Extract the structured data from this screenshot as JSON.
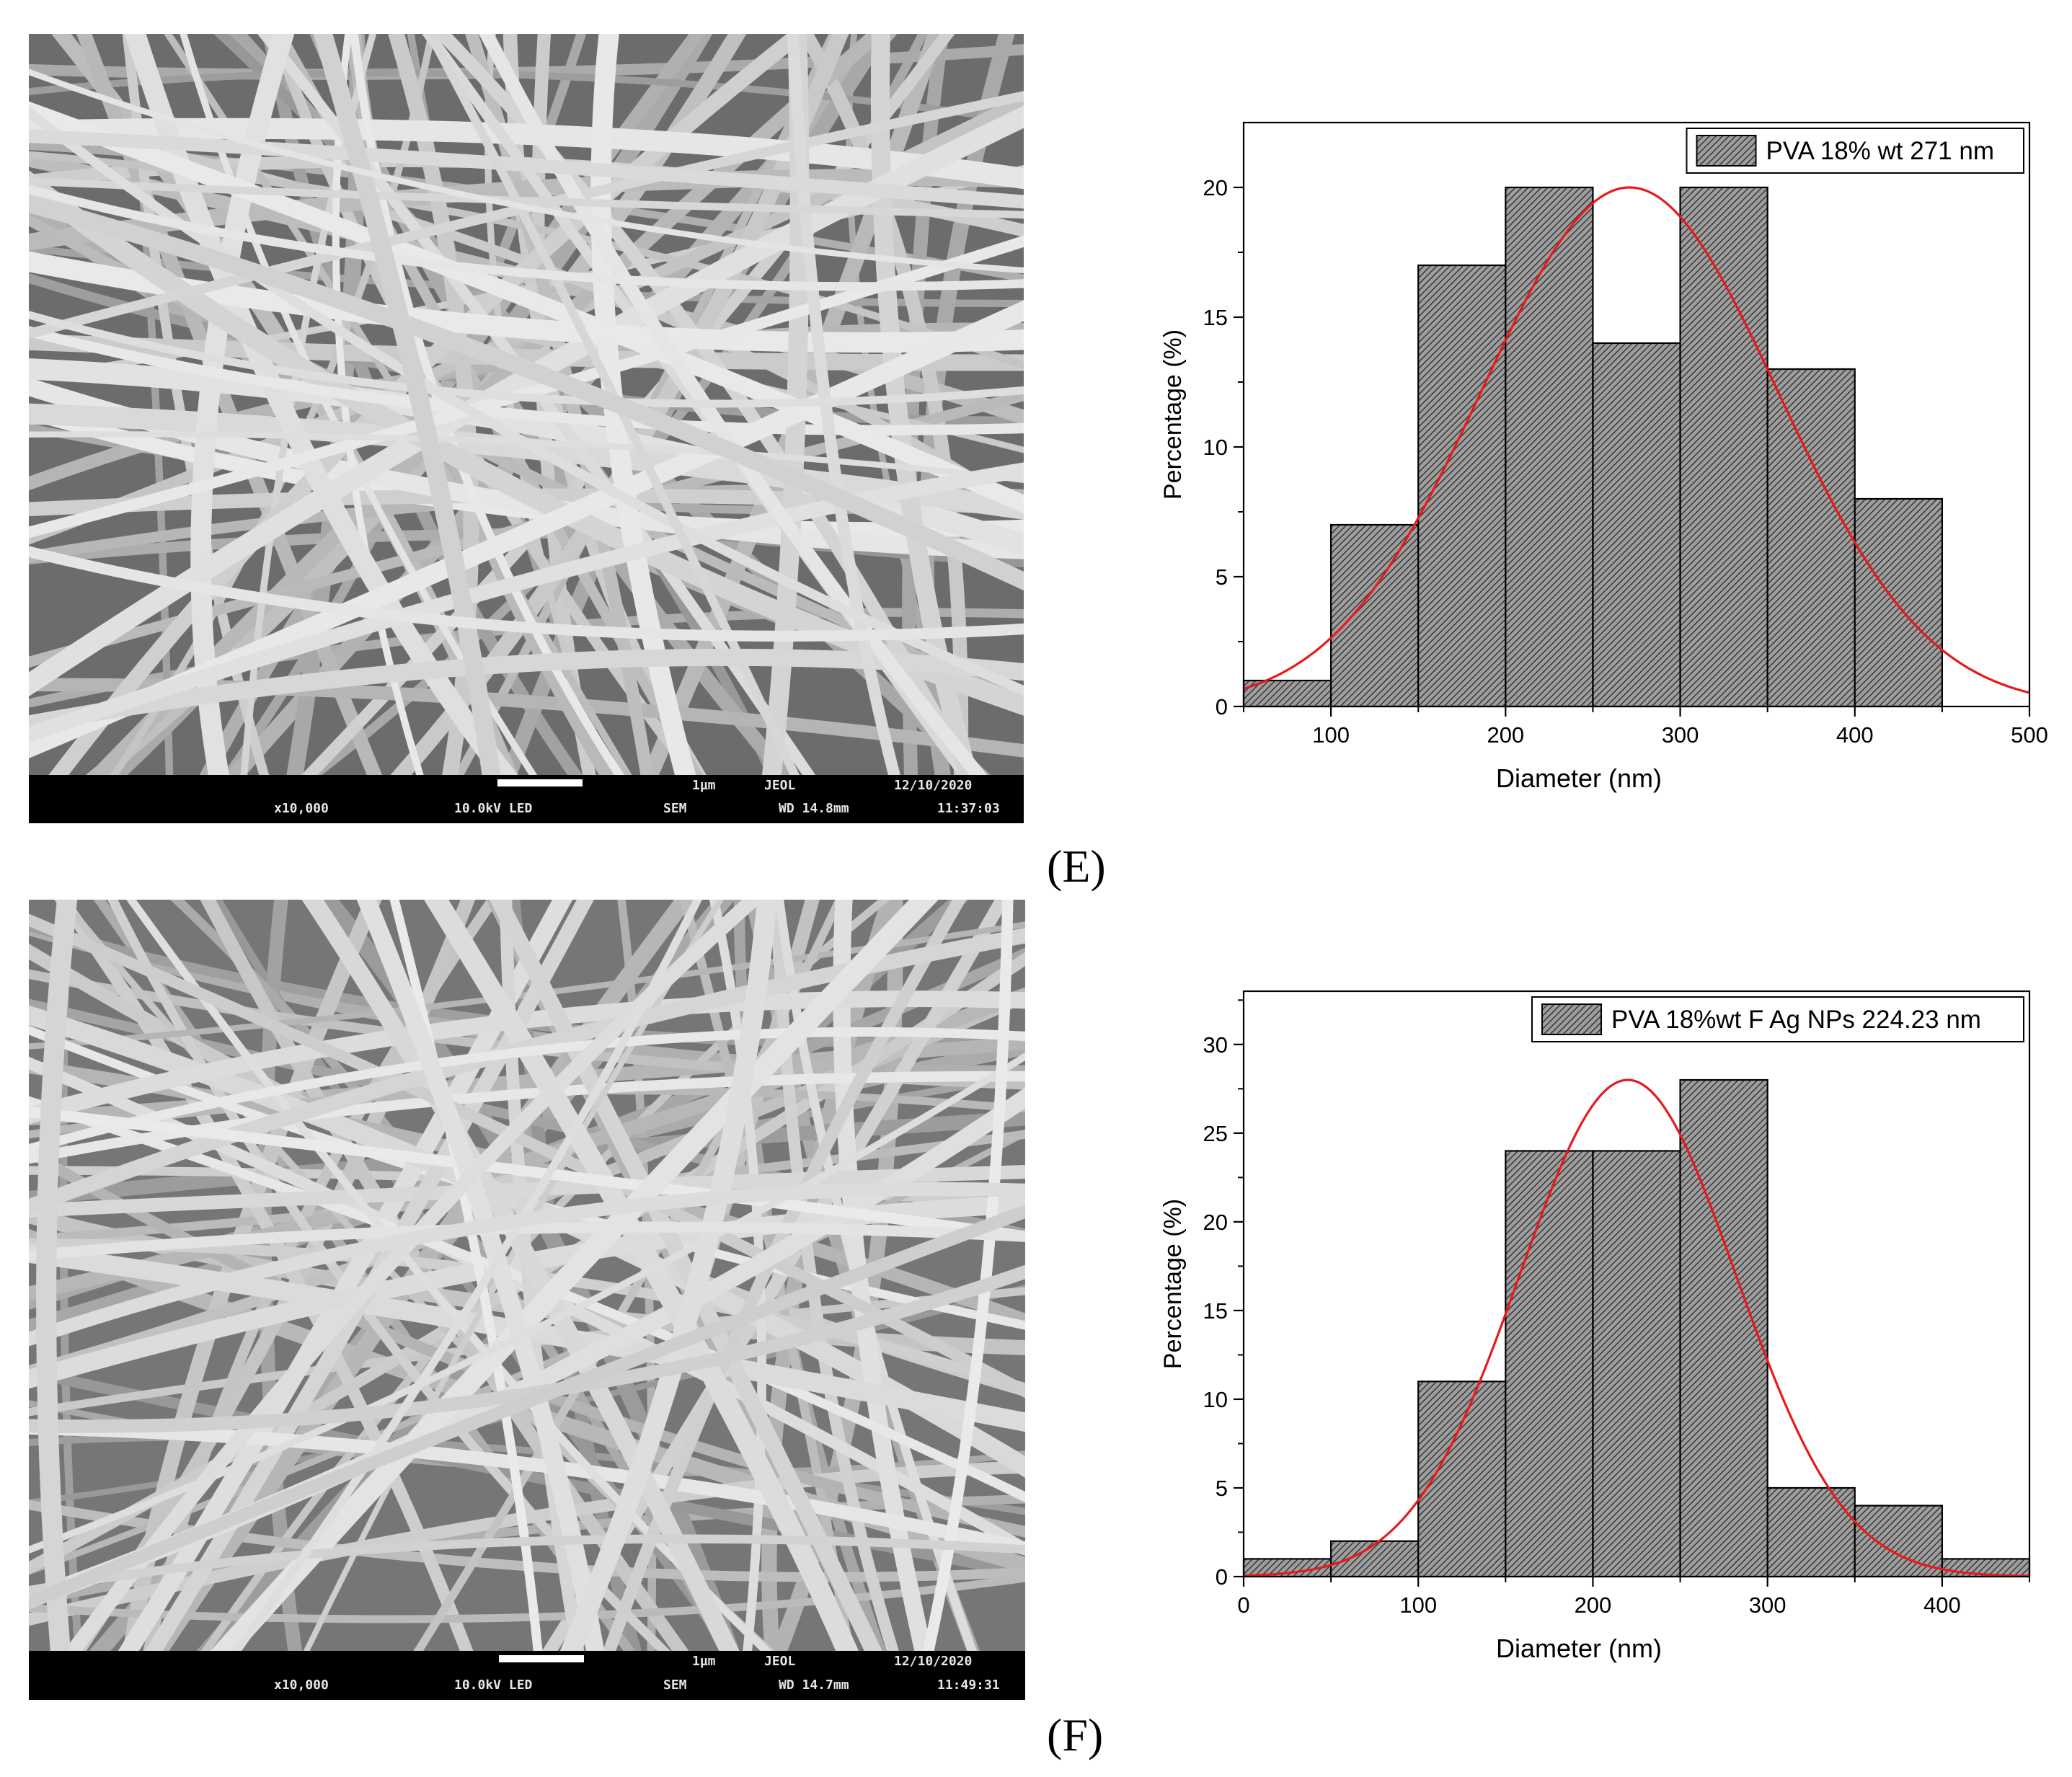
{
  "panels": [
    {
      "label": "(E)",
      "sem": {
        "scale_label": "1µm",
        "brand": "JEOL",
        "date": "12/10/2020",
        "magnification": "x10,000",
        "voltage": "10.0kV LED",
        "mode": "SEM",
        "working_distance": "WD 14.8mm",
        "time": "11:37:03"
      },
      "chart_data": {
        "type": "bar",
        "title": "",
        "xlabel": "Diameter (nm)",
        "ylabel": "Percentage (%)",
        "xlim": [
          50,
          500
        ],
        "ylim": [
          0,
          22.5
        ],
        "xticks": [
          100,
          200,
          300,
          400,
          500
        ],
        "yticks": [
          0,
          5,
          10,
          15,
          20
        ],
        "bin_edges": [
          50,
          100,
          150,
          200,
          250,
          300,
          350,
          400,
          450
        ],
        "values": [
          1,
          7,
          17,
          20,
          14,
          20,
          13,
          8
        ],
        "legend": {
          "label": "PVA 18% wt 271 nm",
          "position": "top-right"
        },
        "fit": {
          "type": "gaussian",
          "mean": 271,
          "peak": 20,
          "sigma": 85,
          "color": "#e8191a"
        },
        "bar_fill": "#9e9e9e",
        "grid": false
      }
    },
    {
      "label": "(F)",
      "sem": {
        "scale_label": "1µm",
        "brand": "JEOL",
        "date": "12/10/2020",
        "magnification": "x10,000",
        "voltage": "10.0kV LED",
        "mode": "SEM",
        "working_distance": "WD 14.7mm",
        "time": "11:49:31"
      },
      "chart_data": {
        "type": "bar",
        "title": "",
        "xlabel": "Diameter (nm)",
        "ylabel": "Percentage (%)",
        "xlim": [
          0,
          450
        ],
        "ylim": [
          0,
          33
        ],
        "xticks": [
          0,
          100,
          200,
          300,
          400
        ],
        "yticks": [
          0,
          5,
          10,
          15,
          20,
          25,
          30
        ],
        "bin_edges": [
          0,
          50,
          100,
          150,
          200,
          250,
          300,
          350,
          400,
          450
        ],
        "values": [
          1,
          2,
          11,
          24,
          24,
          28,
          5,
          4,
          1
        ],
        "legend": {
          "label": "PVA 18%wt F Ag NPs 224.23 nm",
          "position": "top-right"
        },
        "fit": {
          "type": "gaussian",
          "mean": 220,
          "peak": 28,
          "sigma": 62,
          "color": "#e8191a"
        },
        "bar_fill": "#9e9e9e",
        "grid": false
      }
    }
  ]
}
